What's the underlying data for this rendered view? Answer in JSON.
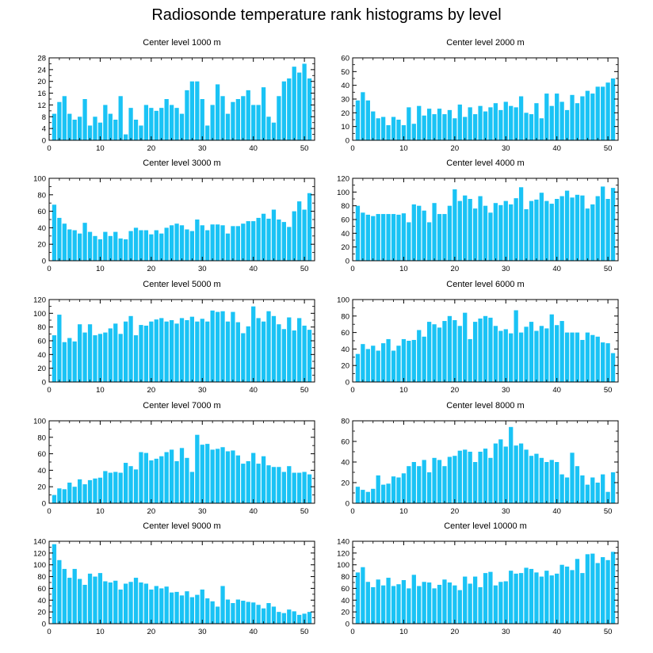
{
  "figure": {
    "title": "Radiosonde temperature rank histograms by level",
    "bar_color": "#1AC3F5",
    "axis_color": "#000000"
  },
  "chart_data": [
    {
      "type": "bar",
      "title": "Center level 1000 m",
      "xlim": [
        0,
        52
      ],
      "ylim": [
        0,
        28
      ],
      "xticks": [
        0,
        10,
        20,
        30,
        40,
        50
      ],
      "yticks": [
        0,
        4,
        8,
        12,
        16,
        20,
        24,
        28
      ],
      "x": [
        1,
        2,
        3,
        4,
        5,
        6,
        7,
        8,
        9,
        10,
        11,
        12,
        13,
        14,
        15,
        16,
        17,
        18,
        19,
        20,
        21,
        22,
        23,
        24,
        25,
        26,
        27,
        28,
        29,
        30,
        31,
        32,
        33,
        34,
        35,
        36,
        37,
        38,
        39,
        40,
        41,
        42,
        43,
        44,
        45,
        46,
        47,
        48,
        49,
        50,
        51
      ],
      "values": [
        9,
        13,
        15,
        9,
        7,
        8,
        14,
        5,
        8,
        6,
        12,
        9,
        7,
        15,
        2,
        11,
        7,
        5,
        12,
        11,
        10,
        11,
        14,
        12,
        11,
        9,
        17,
        20,
        20,
        14,
        5,
        12,
        19,
        15,
        9,
        13,
        14,
        15,
        17,
        12,
        12,
        18,
        8,
        6,
        15,
        20,
        21,
        25,
        23,
        26,
        21
      ]
    },
    {
      "type": "bar",
      "title": "Center level 2000 m",
      "xlim": [
        0,
        52
      ],
      "ylim": [
        0,
        60
      ],
      "xticks": [
        0,
        10,
        20,
        30,
        40,
        50
      ],
      "yticks": [
        0,
        10,
        20,
        30,
        40,
        50,
        60
      ],
      "x": [
        1,
        2,
        3,
        4,
        5,
        6,
        7,
        8,
        9,
        10,
        11,
        12,
        13,
        14,
        15,
        16,
        17,
        18,
        19,
        20,
        21,
        22,
        23,
        24,
        25,
        26,
        27,
        28,
        29,
        30,
        31,
        32,
        33,
        34,
        35,
        36,
        37,
        38,
        39,
        40,
        41,
        42,
        43,
        44,
        45,
        46,
        47,
        48,
        49,
        50,
        51
      ],
      "values": [
        29,
        35,
        29,
        21,
        16,
        17,
        11,
        17,
        15,
        11,
        24,
        12,
        25,
        18,
        23,
        19,
        23,
        19,
        22,
        16,
        26,
        17,
        24,
        19,
        25,
        21,
        24,
        27,
        22,
        28,
        25,
        24,
        32,
        20,
        19,
        27,
        16,
        34,
        25,
        34,
        28,
        22,
        33,
        27,
        32,
        36,
        34,
        39,
        39,
        42,
        45
      ]
    },
    {
      "type": "bar",
      "title": "Center level 3000 m",
      "xlim": [
        0,
        52
      ],
      "ylim": [
        0,
        100
      ],
      "xticks": [
        0,
        10,
        20,
        30,
        40,
        50
      ],
      "yticks": [
        0,
        20,
        40,
        60,
        80,
        100
      ],
      "x": [
        1,
        2,
        3,
        4,
        5,
        6,
        7,
        8,
        9,
        10,
        11,
        12,
        13,
        14,
        15,
        16,
        17,
        18,
        19,
        20,
        21,
        22,
        23,
        24,
        25,
        26,
        27,
        28,
        29,
        30,
        31,
        32,
        33,
        34,
        35,
        36,
        37,
        38,
        39,
        40,
        41,
        42,
        43,
        44,
        45,
        46,
        47,
        48,
        49,
        50,
        51
      ],
      "values": [
        68,
        52,
        45,
        38,
        37,
        33,
        46,
        35,
        30,
        26,
        35,
        30,
        35,
        27,
        26,
        36,
        40,
        37,
        37,
        32,
        37,
        33,
        40,
        43,
        45,
        43,
        38,
        36,
        50,
        43,
        37,
        44,
        44,
        43,
        33,
        42,
        42,
        45,
        48,
        48,
        52,
        57,
        51,
        62,
        50,
        47,
        41,
        60,
        72,
        62,
        82
      ]
    },
    {
      "type": "bar",
      "title": "Center level 4000 m",
      "xlim": [
        0,
        52
      ],
      "ylim": [
        0,
        120
      ],
      "xticks": [
        0,
        10,
        20,
        30,
        40,
        50
      ],
      "yticks": [
        0,
        20,
        40,
        60,
        80,
        100,
        120
      ],
      "x": [
        1,
        2,
        3,
        4,
        5,
        6,
        7,
        8,
        9,
        10,
        11,
        12,
        13,
        14,
        15,
        16,
        17,
        18,
        19,
        20,
        21,
        22,
        23,
        24,
        25,
        26,
        27,
        28,
        29,
        30,
        31,
        32,
        33,
        34,
        35,
        36,
        37,
        38,
        39,
        40,
        41,
        42,
        43,
        44,
        45,
        46,
        47,
        48,
        49,
        50,
        51
      ],
      "values": [
        80,
        70,
        67,
        65,
        68,
        68,
        68,
        68,
        67,
        69,
        56,
        82,
        80,
        73,
        56,
        84,
        68,
        68,
        80,
        104,
        87,
        95,
        90,
        76,
        94,
        80,
        70,
        84,
        81,
        87,
        82,
        91,
        107,
        75,
        87,
        89,
        99,
        87,
        83,
        90,
        94,
        102,
        92,
        96,
        95,
        76,
        82,
        94,
        108,
        90,
        106
      ]
    },
    {
      "type": "bar",
      "title": "Center level 5000 m",
      "xlim": [
        0,
        52
      ],
      "ylim": [
        0,
        120
      ],
      "xticks": [
        0,
        10,
        20,
        30,
        40,
        50
      ],
      "yticks": [
        0,
        20,
        40,
        60,
        80,
        100,
        120
      ],
      "x": [
        1,
        2,
        3,
        4,
        5,
        6,
        7,
        8,
        9,
        10,
        11,
        12,
        13,
        14,
        15,
        16,
        17,
        18,
        19,
        20,
        21,
        22,
        23,
        24,
        25,
        26,
        27,
        28,
        29,
        30,
        31,
        32,
        33,
        34,
        35,
        36,
        37,
        38,
        39,
        40,
        41,
        42,
        43,
        44,
        45,
        46,
        47,
        48,
        49,
        50,
        51
      ],
      "values": [
        68,
        98,
        58,
        64,
        59,
        84,
        72,
        84,
        68,
        70,
        72,
        78,
        85,
        70,
        88,
        96,
        68,
        83,
        82,
        88,
        91,
        93,
        88,
        90,
        85,
        93,
        90,
        95,
        88,
        92,
        88,
        104,
        102,
        103,
        88,
        102,
        87,
        71,
        81,
        110,
        93,
        88,
        103,
        96,
        84,
        77,
        94,
        75,
        93,
        82,
        76
      ]
    },
    {
      "type": "bar",
      "title": "Center level 6000 m",
      "xlim": [
        0,
        52
      ],
      "ylim": [
        0,
        100
      ],
      "xticks": [
        0,
        10,
        20,
        30,
        40,
        50
      ],
      "yticks": [
        0,
        20,
        40,
        60,
        80,
        100
      ],
      "x": [
        1,
        2,
        3,
        4,
        5,
        6,
        7,
        8,
        9,
        10,
        11,
        12,
        13,
        14,
        15,
        16,
        17,
        18,
        19,
        20,
        21,
        22,
        23,
        24,
        25,
        26,
        27,
        28,
        29,
        30,
        31,
        32,
        33,
        34,
        35,
        36,
        37,
        38,
        39,
        40,
        41,
        42,
        43,
        44,
        45,
        46,
        47,
        48,
        49,
        50,
        51
      ],
      "values": [
        34,
        46,
        40,
        44,
        38,
        47,
        52,
        38,
        44,
        52,
        50,
        51,
        63,
        55,
        73,
        70,
        66,
        74,
        80,
        75,
        68,
        84,
        52,
        73,
        77,
        80,
        78,
        68,
        62,
        64,
        59,
        87,
        60,
        67,
        73,
        62,
        68,
        65,
        82,
        69,
        74,
        60,
        60,
        60,
        51,
        60,
        57,
        55,
        48,
        47,
        35
      ]
    },
    {
      "type": "bar",
      "title": "Center level 7000 m",
      "xlim": [
        0,
        52
      ],
      "ylim": [
        0,
        100
      ],
      "xticks": [
        0,
        10,
        20,
        30,
        40,
        50
      ],
      "yticks": [
        0,
        20,
        40,
        60,
        80,
        100
      ],
      "x": [
        1,
        2,
        3,
        4,
        5,
        6,
        7,
        8,
        9,
        10,
        11,
        12,
        13,
        14,
        15,
        16,
        17,
        18,
        19,
        20,
        21,
        22,
        23,
        24,
        25,
        26,
        27,
        28,
        29,
        30,
        31,
        32,
        33,
        34,
        35,
        36,
        37,
        38,
        39,
        40,
        41,
        42,
        43,
        44,
        45,
        46,
        47,
        48,
        49,
        50,
        51
      ],
      "values": [
        10,
        18,
        17,
        25,
        20,
        29,
        23,
        28,
        30,
        31,
        39,
        37,
        38,
        37,
        49,
        45,
        41,
        62,
        61,
        52,
        54,
        57,
        62,
        65,
        51,
        67,
        55,
        38,
        83,
        71,
        72,
        65,
        66,
        68,
        63,
        64,
        58,
        48,
        51,
        61,
        48,
        57,
        46,
        44,
        44,
        38,
        45,
        37,
        37,
        38,
        35
      ]
    },
    {
      "type": "bar",
      "title": "Center level 8000 m",
      "xlim": [
        0,
        52
      ],
      "ylim": [
        0,
        80
      ],
      "xticks": [
        0,
        10,
        20,
        30,
        40,
        50
      ],
      "yticks": [
        0,
        20,
        40,
        60,
        80
      ],
      "x": [
        1,
        2,
        3,
        4,
        5,
        6,
        7,
        8,
        9,
        10,
        11,
        12,
        13,
        14,
        15,
        16,
        17,
        18,
        19,
        20,
        21,
        22,
        23,
        24,
        25,
        26,
        27,
        28,
        29,
        30,
        31,
        32,
        33,
        34,
        35,
        36,
        37,
        38,
        39,
        40,
        41,
        42,
        43,
        44,
        45,
        46,
        47,
        48,
        49,
        50,
        51
      ],
      "values": [
        16,
        13,
        11,
        14,
        27,
        18,
        19,
        26,
        25,
        29,
        36,
        40,
        36,
        42,
        30,
        44,
        42,
        36,
        45,
        46,
        51,
        52,
        50,
        40,
        50,
        53,
        44,
        58,
        62,
        55,
        74,
        56,
        58,
        52,
        46,
        48,
        44,
        40,
        42,
        40,
        28,
        25,
        49,
        36,
        27,
        18,
        25,
        20,
        28,
        11,
        30
      ]
    },
    {
      "type": "bar",
      "title": "Center level 9000 m",
      "xlim": [
        0,
        52
      ],
      "ylim": [
        0,
        140
      ],
      "xticks": [
        0,
        10,
        20,
        30,
        40,
        50
      ],
      "yticks": [
        0,
        20,
        40,
        60,
        80,
        100,
        120,
        140
      ],
      "x": [
        1,
        2,
        3,
        4,
        5,
        6,
        7,
        8,
        9,
        10,
        11,
        12,
        13,
        14,
        15,
        16,
        17,
        18,
        19,
        20,
        21,
        22,
        23,
        24,
        25,
        26,
        27,
        28,
        29,
        30,
        31,
        32,
        33,
        34,
        35,
        36,
        37,
        38,
        39,
        40,
        41,
        42,
        43,
        44,
        45,
        46,
        47,
        48,
        49,
        50,
        51
      ],
      "values": [
        135,
        108,
        93,
        78,
        93,
        76,
        66,
        85,
        80,
        86,
        72,
        70,
        73,
        58,
        68,
        71,
        78,
        70,
        68,
        58,
        64,
        60,
        63,
        53,
        54,
        48,
        55,
        45,
        49,
        58,
        43,
        38,
        29,
        64,
        41,
        35,
        41,
        39,
        37,
        36,
        32,
        26,
        35,
        29,
        20,
        18,
        24,
        21,
        15,
        17,
        20
      ]
    },
    {
      "type": "bar",
      "title": "Center level 10000 m",
      "xlim": [
        0,
        52
      ],
      "ylim": [
        0,
        140
      ],
      "xticks": [
        0,
        10,
        20,
        30,
        40,
        50
      ],
      "yticks": [
        0,
        20,
        40,
        60,
        80,
        100,
        120,
        140
      ],
      "x": [
        1,
        2,
        3,
        4,
        5,
        6,
        7,
        8,
        9,
        10,
        11,
        12,
        13,
        14,
        15,
        16,
        17,
        18,
        19,
        20,
        21,
        22,
        23,
        24,
        25,
        26,
        27,
        28,
        29,
        30,
        31,
        32,
        33,
        34,
        35,
        36,
        37,
        38,
        39,
        40,
        41,
        42,
        43,
        44,
        45,
        46,
        47,
        48,
        49,
        50,
        51
      ],
      "values": [
        87,
        96,
        71,
        62,
        75,
        65,
        78,
        64,
        67,
        74,
        60,
        83,
        64,
        71,
        70,
        60,
        66,
        75,
        70,
        65,
        57,
        80,
        68,
        80,
        62,
        86,
        88,
        65,
        71,
        72,
        90,
        85,
        86,
        95,
        93,
        87,
        80,
        90,
        82,
        85,
        100,
        97,
        91,
        110,
        86,
        118,
        119,
        103,
        113,
        108,
        122
      ]
    }
  ]
}
